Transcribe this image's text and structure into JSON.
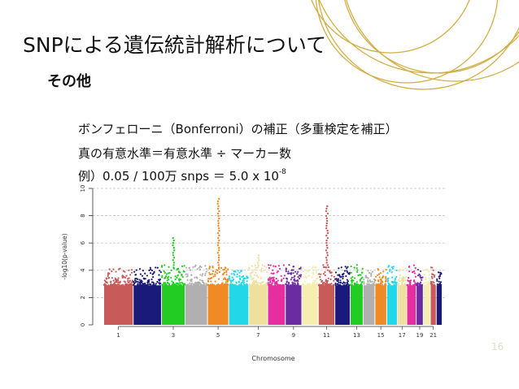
{
  "slide": {
    "title": "SNPによる遺伝統計解析について",
    "subtitle": "その他",
    "line1": "ボンフェローニ（Bonferroni）の補正（多重検定を補正）",
    "line2": "真の有意水準＝有意水準 ÷ マーカー数",
    "line3_main": "例）0.05 / 100万 snps ＝ 5.0 x 10",
    "line3_sup": "-8",
    "page_number": "16",
    "accent_color": "#c9a227"
  },
  "chart_data": {
    "type": "scatter",
    "title": "",
    "xlabel": "Chromosome",
    "ylabel": "-log10(p-value)",
    "ylim": [
      0,
      10
    ],
    "yticks": [
      0,
      2,
      4,
      6,
      8,
      10
    ],
    "x_tick_labels": [
      "1",
      "3",
      "5",
      "7",
      "9",
      "11",
      "13",
      "15",
      "17",
      "19",
      "21"
    ],
    "grid": "horizontal dashed",
    "chromosomes": [
      {
        "chr": 1,
        "color": "#c85a5a",
        "max": 4.2
      },
      {
        "chr": 2,
        "color": "#1a1a7a",
        "max": 4.3
      },
      {
        "chr": 3,
        "color": "#22cc22",
        "max": 6.4
      },
      {
        "chr": 4,
        "color": "#b0b0b0",
        "max": 4.6
      },
      {
        "chr": 5,
        "color": "#f08a24",
        "max": 9.4
      },
      {
        "chr": 6,
        "color": "#22d8e8",
        "max": 4.0
      },
      {
        "chr": 7,
        "color": "#f0e0a0",
        "max": 5.2
      },
      {
        "chr": 8,
        "color": "#e62ea0",
        "max": 4.5
      },
      {
        "chr": 9,
        "color": "#6a2ca0",
        "max": 4.6
      },
      {
        "chr": 10,
        "color": "#f5eeb0",
        "max": 4.4
      },
      {
        "chr": 11,
        "color": "#c85a5a",
        "max": 8.8
      },
      {
        "chr": 12,
        "color": "#1a1a7a",
        "max": 4.3
      },
      {
        "chr": 13,
        "color": "#22cc22",
        "max": 4.5
      },
      {
        "chr": 14,
        "color": "#b0b0b0",
        "max": 4.0
      },
      {
        "chr": 15,
        "color": "#f08a24",
        "max": 4.2
      },
      {
        "chr": 16,
        "color": "#22d8e8",
        "max": 4.4
      },
      {
        "chr": 17,
        "color": "#f0e0a0",
        "max": 4.3
      },
      {
        "chr": 18,
        "color": "#e62ea0",
        "max": 4.6
      },
      {
        "chr": 19,
        "color": "#6a2ca0",
        "max": 4.2
      },
      {
        "chr": 20,
        "color": "#f5eeb0",
        "max": 4.4
      },
      {
        "chr": 21,
        "color": "#c85a5a",
        "max": 4.3
      },
      {
        "chr": 22,
        "color": "#1a1a7a",
        "max": 4.2
      }
    ]
  }
}
